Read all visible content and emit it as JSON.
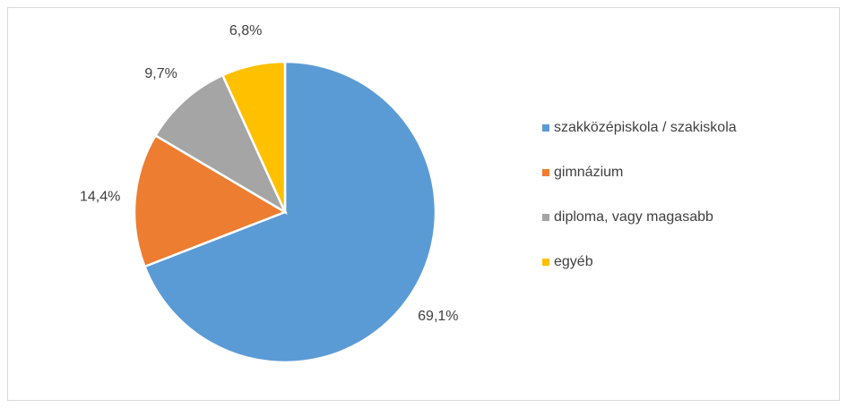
{
  "chart_data": {
    "type": "pie",
    "categories": [
      "szakközépiskola / szakiskola",
      "gimnázium",
      "diploma, vagy magasabb",
      "egyéb"
    ],
    "values": [
      69.1,
      14.4,
      9.7,
      6.8
    ],
    "value_labels": [
      "69,1%",
      "14,4%",
      "9,7%",
      "6,8%"
    ],
    "colors": [
      "#5b9bd5",
      "#ed7d31",
      "#a5a5a5",
      "#ffc000"
    ],
    "legend": "right"
  }
}
